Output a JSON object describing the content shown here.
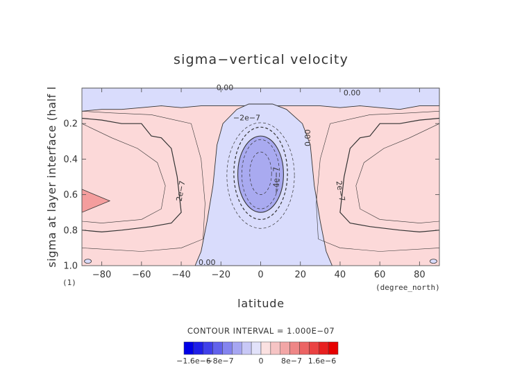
{
  "chart_data": {
    "type": "heatmap",
    "title": "sigma−vertical velocity",
    "xlabel": "latitude",
    "x_units": "(degree_north)",
    "ylabel": "sigma at layer interface (half l",
    "y_units": "(1)",
    "xlim": [
      -90,
      90
    ],
    "ylim": [
      1.0,
      0.0
    ],
    "y_inverted": true,
    "x_ticks": [
      -80,
      -60,
      -40,
      -20,
      0,
      20,
      40,
      60,
      80
    ],
    "x_tick_labels": [
      "−80",
      "−60",
      "−40",
      "−20",
      "0",
      "20",
      "40",
      "60",
      "80"
    ],
    "y_ticks": [
      0.2,
      0.4,
      0.6,
      0.8,
      1.0
    ],
    "y_tick_labels": [
      "0.2",
      "0.4",
      "0.6",
      "0.8",
      "1.0"
    ],
    "grid": false,
    "contour_interval_label": "CONTOUR INTERVAL = 1.000E−07",
    "contour_labels": [
      "0.00",
      "0.00",
      "−2e−7",
      "0.00",
      "−4e−7",
      "2e−7",
      "2e−7",
      "0.00"
    ],
    "colorbar": {
      "tick_labels": [
        "−1.6e−6",
        "−8e−7",
        "0",
        "8e−7",
        "1.6e−6"
      ],
      "colors": [
        "#0000e6",
        "#1f1fe8",
        "#4040ea",
        "#6262ec",
        "#8484ef",
        "#a6a6f2",
        "#c8c8f6",
        "#e2e2fa",
        "#fbe1e1",
        "#f6c4c4",
        "#f2a6a6",
        "#ee8686",
        "#ec6464",
        "#ea4242",
        "#e82020",
        "#e60000"
      ],
      "neg_color": "#d9dcfc",
      "pos_color": "#fcd9d9",
      "strong_neg_color": "#a9aaf0",
      "strong_pos_color": "#f49d9d"
    },
    "regions": {
      "central_descent_lat": [
        -33,
        36
      ],
      "strong_core_lat": [
        -12,
        12
      ],
      "strong_core_sigma": [
        0.27,
        0.7
      ]
    }
  }
}
